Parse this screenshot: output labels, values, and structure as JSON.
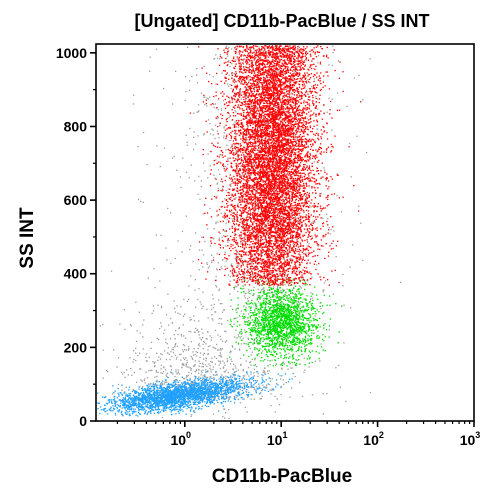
{
  "chart_data": {
    "type": "scatter",
    "title": "[Ungated] CD11b-PacBlue / SS INT",
    "xlabel": "CD11b-PacBlue",
    "ylabel": "SS INT",
    "xscale": "log",
    "xlim": [
      0.12,
      1000
    ],
    "ylim": [
      0,
      1024
    ],
    "x_ticks": [
      {
        "base": "10",
        "exp": "0",
        "value": 1
      },
      {
        "base": "10",
        "exp": "1",
        "value": 10
      },
      {
        "base": "10",
        "exp": "2",
        "value": 100
      },
      {
        "base": "10",
        "exp": "3",
        "value": 1000
      }
    ],
    "y_ticks": [
      "0",
      "200",
      "400",
      "600",
      "800",
      "1000"
    ],
    "y_tick_values": [
      0,
      200,
      400,
      600,
      800,
      1000
    ],
    "grid": false,
    "legend": "none",
    "populations": [
      {
        "color": "#ff0000",
        "x_center": 8,
        "x_spread_log": 0.23,
        "y_center": 680,
        "y_spread": 190,
        "y_range": [
          370,
          1024
        ]
      },
      {
        "color": "#00dd00",
        "x_center": 10,
        "x_spread_log": 0.18,
        "y_center": 270,
        "y_spread": 50,
        "y_range": [
          150,
          390
        ]
      },
      {
        "color": "#1ea0ff",
        "x_center": 0.8,
        "x_spread_log": 0.36,
        "y_center": 70,
        "y_spread": 18,
        "y_range": [
          15,
          150
        ]
      },
      {
        "color": "#9e9e9e",
        "x_center": 2.5,
        "x_spread_log": 0.6,
        "y_center": 300,
        "y_spread": 230,
        "y_range": [
          0,
          1024
        ]
      }
    ]
  }
}
